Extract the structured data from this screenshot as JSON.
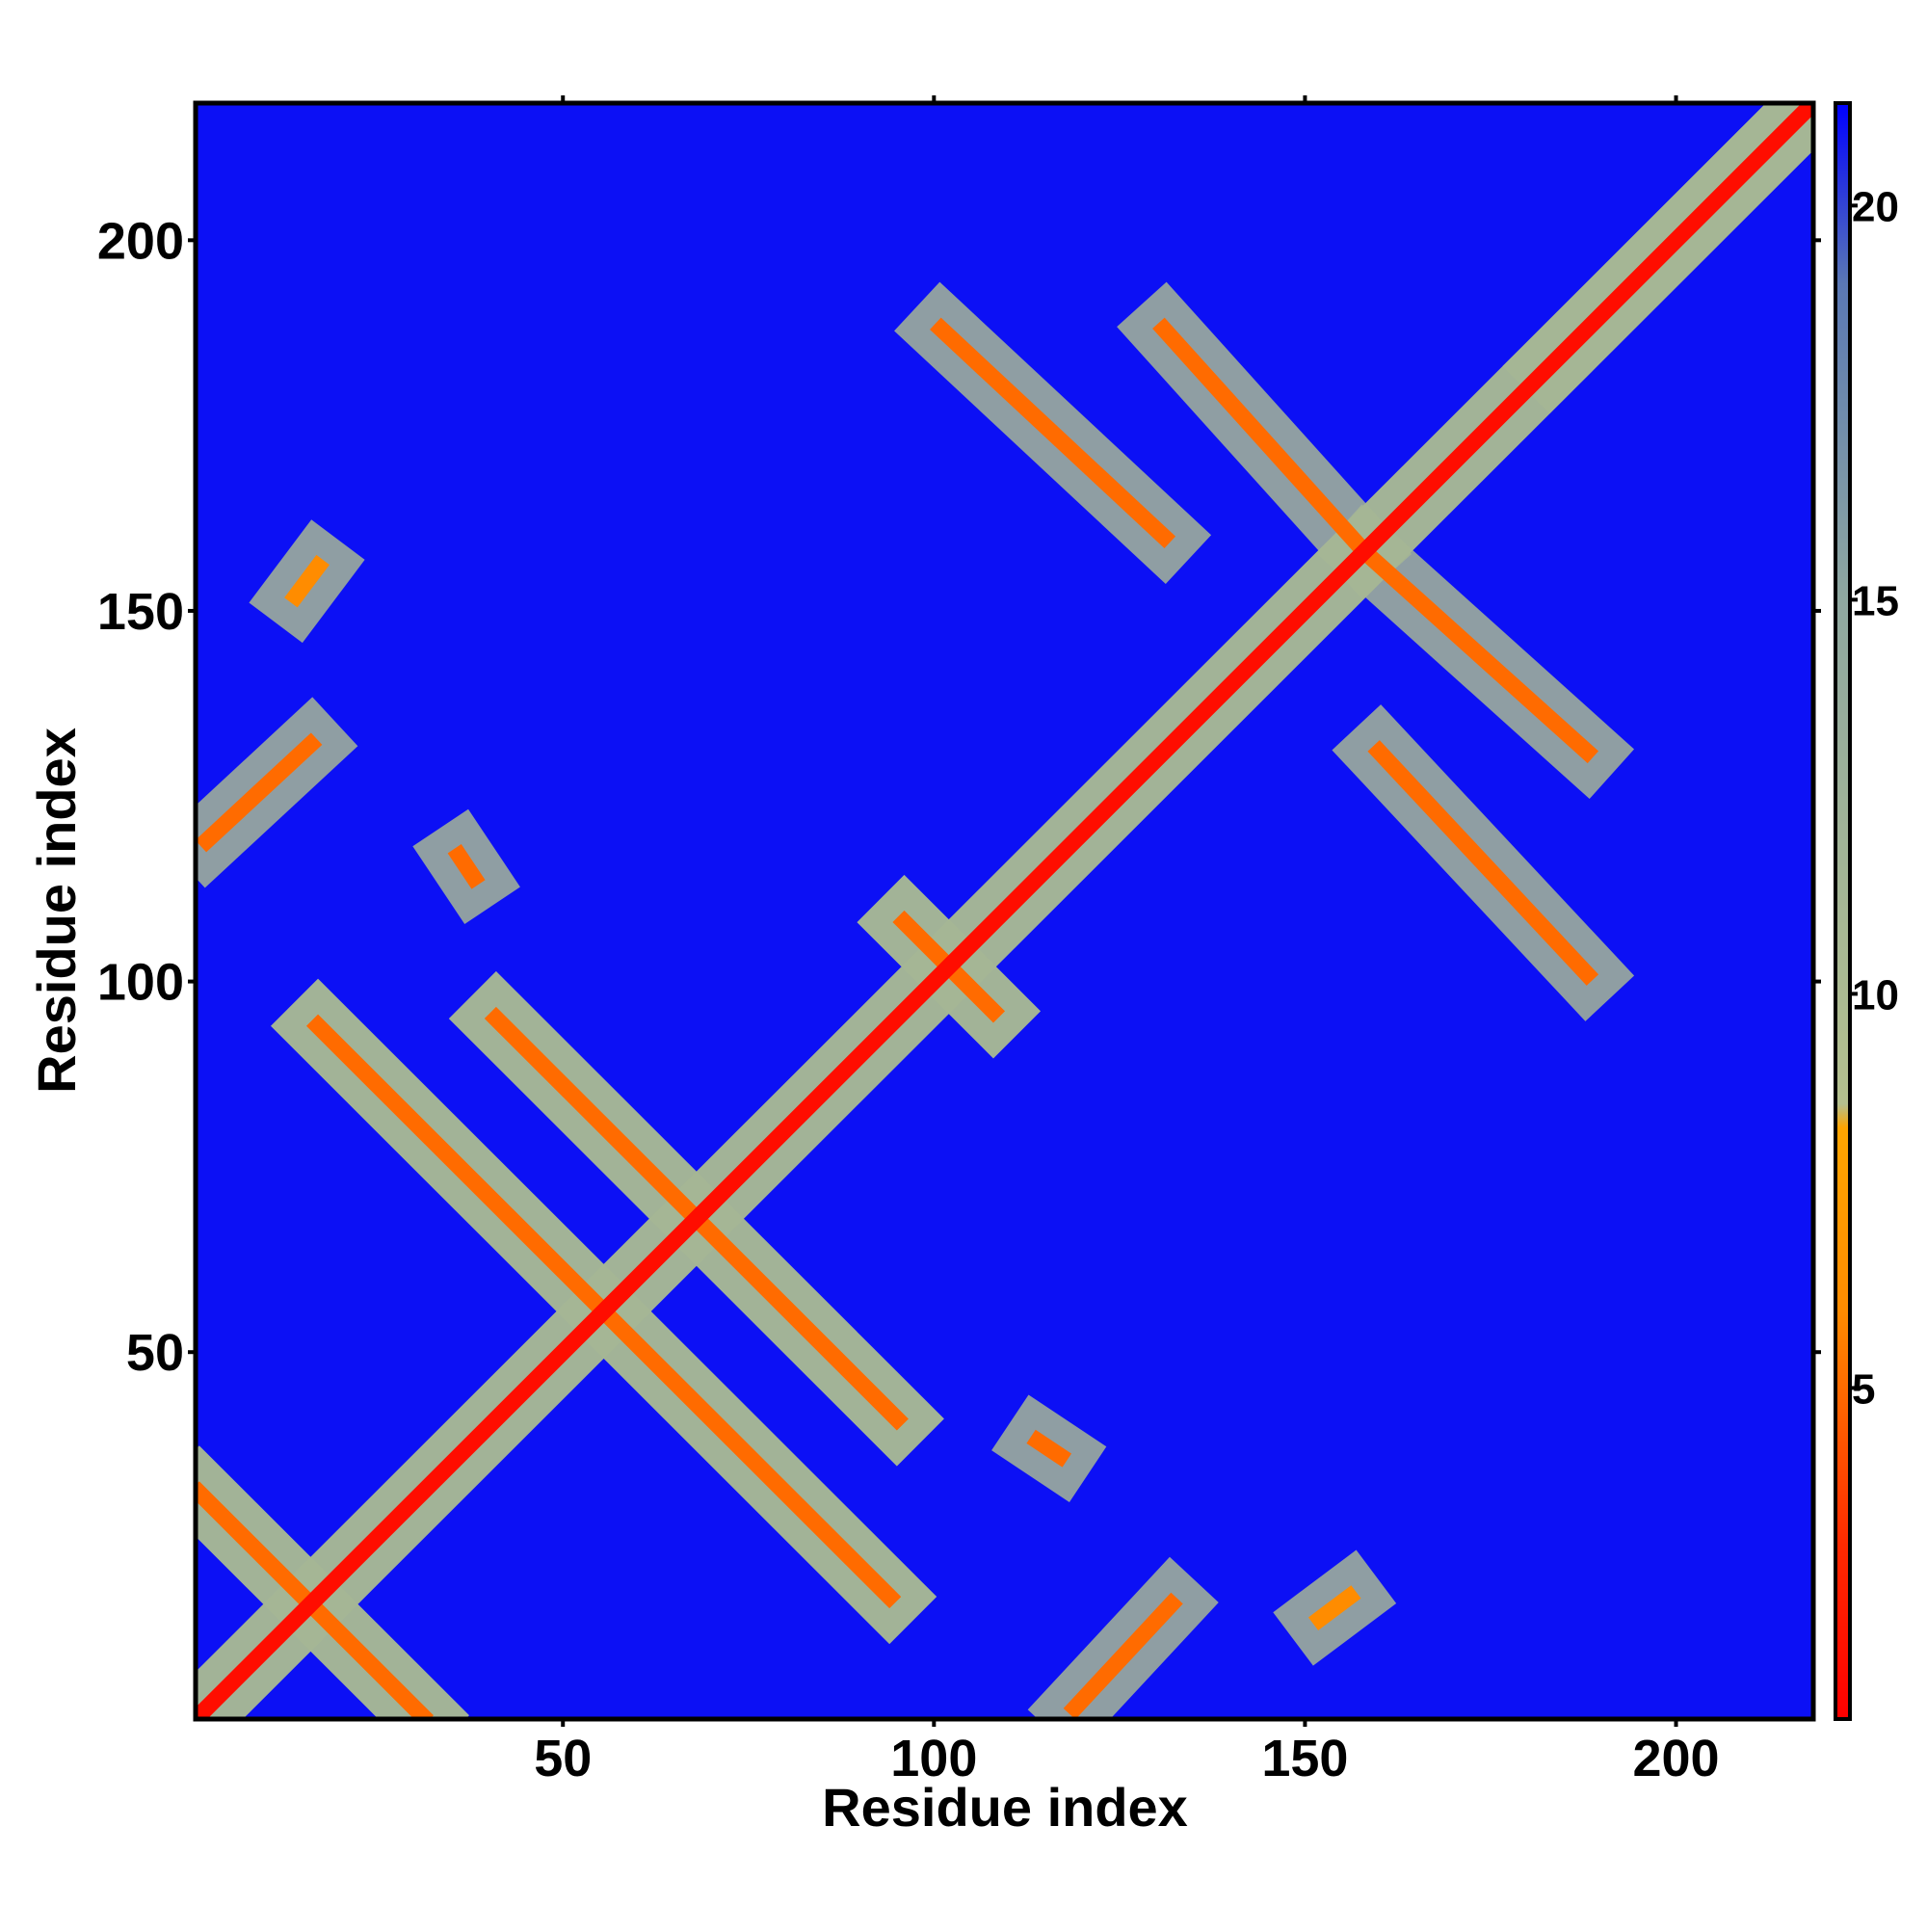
{
  "chart_data": {
    "type": "heatmap",
    "x_label": "Residue index",
    "y_label": "Residue index",
    "xlim": [
      0.5,
      218.5
    ],
    "ylim": [
      0.5,
      218.5
    ],
    "xticks": [
      50,
      100,
      150,
      200
    ],
    "yticks": [
      50,
      100,
      150,
      200
    ],
    "background_value": 21,
    "halo_value": 11,
    "bands": [
      {
        "x": [
          183,
          218
        ],
        "y": [
          183,
          218
        ],
        "value": 12
      },
      {
        "x": [
          1,
          31
        ],
        "y": [
          31,
          1
        ],
        "value": 5
      },
      {
        "x": [
          2,
          16
        ],
        "y": [
          119,
          132
        ],
        "value": 5
      },
      {
        "x": [
          17,
          94
        ],
        "y": [
          94,
          17
        ],
        "value": 5
      },
      {
        "x": [
          41,
          95
        ],
        "y": [
          95,
          41
        ],
        "value": 5
      },
      {
        "x": [
          96,
          108
        ],
        "y": [
          108,
          96
        ],
        "value": 5
      },
      {
        "x": [
          101,
          131
        ],
        "y": [
          188,
          160
        ],
        "value": 5
      },
      {
        "x": [
          131,
          158
        ],
        "y": [
          188,
          158
        ],
        "value": 5
      },
      {
        "x": [
          36,
          38
        ],
        "y": [
          117,
          114
        ],
        "value": 5
      },
      {
        "x": [
          152,
          156
        ],
        "y": [
          14,
          17
        ],
        "value": 6
      },
      {
        "x": [
          1,
          218
        ],
        "y": [
          1,
          218
        ],
        "value": 1.5
      }
    ],
    "colorbar": {
      "lim": [
        0.8,
        21.3
      ],
      "ticks": [
        5,
        10,
        15,
        20
      ],
      "colorscale": [
        {
          "value": 0.8,
          "color": "#ff0000"
        },
        {
          "value": 3,
          "color": "#ff2a00"
        },
        {
          "value": 6,
          "color": "#ff8c00"
        },
        {
          "value": 8.3,
          "color": "#ffa500"
        },
        {
          "value": 8.6,
          "color": "#b4c08e"
        },
        {
          "value": 15,
          "color": "#8fa8a0"
        },
        {
          "value": 19,
          "color": "#5a78b4"
        },
        {
          "value": 21.3,
          "color": "#0000ff"
        }
      ]
    }
  }
}
